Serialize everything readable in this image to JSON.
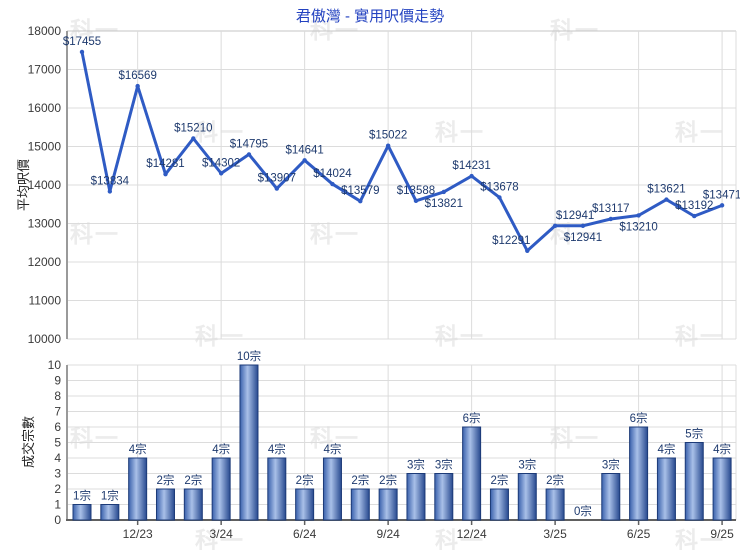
{
  "title": "君傲灣 - 實用呎價走勢",
  "watermark": {
    "text": "科一"
  },
  "colors": {
    "title": "#2342c0",
    "line": "#2f5bc4",
    "point_label": "#1e3a6e",
    "bar_label": "#1e3a6e",
    "bar_edge": "#1d3b78",
    "bar_gradient": [
      "#3a61ac",
      "#a9c0e8",
      "#27498f"
    ],
    "grid": "#dcdcdc",
    "plot_border": "#c4c4c4",
    "y_axis": "#9a9a9a",
    "x_axis": "#606060",
    "tick_text": "#3a3a3a",
    "watermark": "#ececec"
  },
  "x_axis": {
    "tick_indices": [
      2,
      5,
      8,
      11,
      14,
      17,
      20,
      23
    ],
    "tick_labels": [
      "12/23",
      "3/24",
      "6/24",
      "9/24",
      "12/24",
      "3/25",
      "6/25",
      "9/25"
    ]
  },
  "chart_data": [
    {
      "type": "line",
      "ylabel": "平均呎價",
      "ylim": [
        10000,
        18000
      ],
      "yticks": [
        "18000",
        "17000",
        "16000",
        "15000",
        "14000",
        "13000",
        "12000",
        "11000",
        "10000"
      ],
      "grid": true,
      "values": [
        17455,
        13834,
        16569,
        14281,
        15210,
        14302,
        14795,
        13907,
        14641,
        14024,
        13579,
        15022,
        13588,
        13821,
        14231,
        13678,
        12291,
        12941,
        12941,
        13117,
        13210,
        13621,
        13192,
        13471
      ],
      "point_labels": [
        "$17455",
        "$13834",
        "$16569",
        "$14281",
        "$15210",
        "$14302",
        "$14795",
        "$13907",
        "$14641",
        "$14024",
        "$13579",
        "$15022",
        "$13588",
        "$13821",
        "$14231",
        "$13678",
        "$12291",
        "$12941",
        "$12941",
        "$13117",
        "$13210",
        "$13621",
        "$13192",
        "$13471"
      ],
      "label_pos": [
        "above",
        "above",
        "above",
        "above",
        "above",
        "above",
        "above",
        "above",
        "above",
        "above",
        "above",
        "above",
        "above",
        "below",
        "above",
        "above",
        "above-left",
        "above-right",
        "below",
        "above",
        "below",
        "above",
        "above",
        "above"
      ],
      "dotted_segments": [
        [
          17,
          18
        ]
      ]
    },
    {
      "type": "bar",
      "ylabel": "成交宗數",
      "ylim": [
        0,
        10
      ],
      "yticks": [
        "10",
        "9",
        "8",
        "7",
        "6",
        "5",
        "4",
        "3",
        "2",
        "1",
        "0"
      ],
      "grid": true,
      "values": [
        1,
        1,
        4,
        2,
        2,
        4,
        10,
        4,
        2,
        4,
        2,
        2,
        3,
        3,
        6,
        2,
        3,
        2,
        0,
        3,
        6,
        4,
        5,
        4
      ],
      "bar_labels": [
        "1宗",
        "1宗",
        "4宗",
        "2宗",
        "2宗",
        "4宗",
        "10宗",
        "4宗",
        "2宗",
        "4宗",
        "2宗",
        "2宗",
        "3宗",
        "3宗",
        "6宗",
        "2宗",
        "3宗",
        "2宗",
        "0宗",
        "3宗",
        "6宗",
        "4宗",
        "5宗",
        "4宗"
      ]
    }
  ]
}
